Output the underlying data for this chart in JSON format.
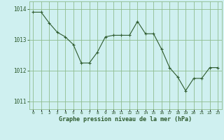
{
  "x_values": [
    0,
    1,
    2,
    3,
    4,
    5,
    6,
    7,
    8,
    9,
    10,
    11,
    12,
    13,
    14,
    15,
    16,
    17,
    18,
    19,
    20,
    21,
    22,
    23
  ],
  "y_values": [
    1013.9,
    1013.9,
    1013.55,
    1013.25,
    1013.1,
    1012.85,
    1012.25,
    1012.25,
    1012.6,
    1013.1,
    1013.15,
    1013.15,
    1013.15,
    1013.6,
    1013.2,
    1013.2,
    1012.7,
    1012.1,
    1011.8,
    1011.35,
    1011.75,
    1011.75,
    1012.1,
    1012.1
  ],
  "background_color": "#cff0f0",
  "line_color": "#2d5a2d",
  "marker_color": "#2d5a2d",
  "grid_color": "#8fbc8f",
  "label_color": "#2d5a2d",
  "ylim": [
    1010.75,
    1014.25
  ],
  "yticks": [
    1011,
    1012,
    1013,
    1014
  ],
  "xtick_labels": [
    "0",
    "1",
    "2",
    "3",
    "4",
    "5",
    "6",
    "7",
    "8",
    "9",
    "10",
    "11",
    "12",
    "13",
    "14",
    "15",
    "16",
    "17",
    "18",
    "19",
    "20",
    "21",
    "22",
    "23"
  ],
  "xlabel": "Graphe pression niveau de la mer (hPa)"
}
